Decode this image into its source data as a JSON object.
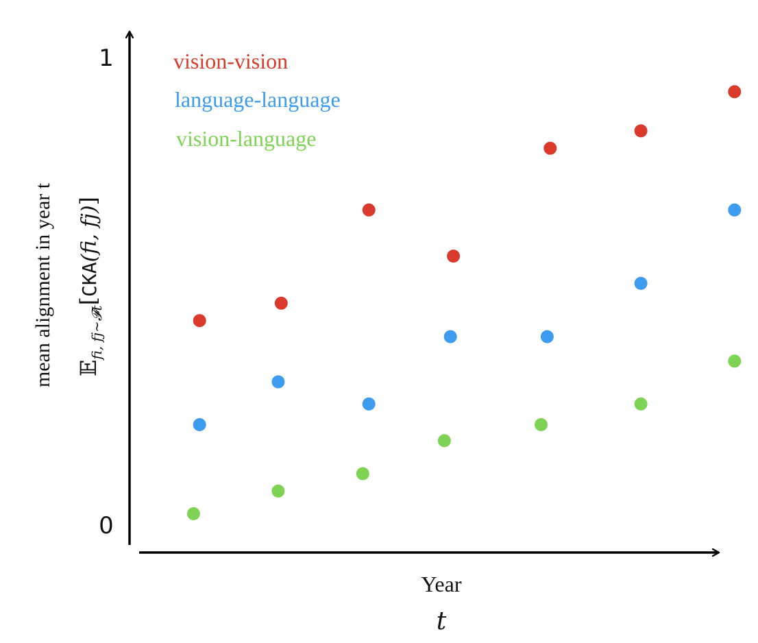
{
  "chart_data": {
    "type": "scatter",
    "title": "",
    "xlabel": "Year",
    "xlabel_symbol": "t",
    "ylabel": "mean alignment in year t",
    "ylabel_formula": {
      "E": "𝔼",
      "sub": "fi, fj∼𝓕t",
      "open": "[",
      "func": "CKA",
      "args": "(fi, fj)",
      "close": "]"
    },
    "y_ticks": [
      "0",
      "1"
    ],
    "ylim": [
      0,
      1
    ],
    "xlim": [
      0,
      10
    ],
    "legend_position": "top-left",
    "grid": false,
    "series": [
      {
        "name": "vision-vision",
        "color": "#d93a2b",
        "x": [
          1.0,
          2.35,
          3.8,
          5.2,
          6.8,
          8.3,
          9.85
        ],
        "y": [
          0.44,
          0.477,
          0.675,
          0.577,
          0.806,
          0.843,
          0.926
        ]
      },
      {
        "name": "language-language",
        "color": "#3d9bf0",
        "x": [
          1.0,
          2.3,
          3.8,
          5.15,
          6.75,
          8.3,
          9.85
        ],
        "y": [
          0.219,
          0.31,
          0.263,
          0.406,
          0.406,
          0.519,
          0.675
        ]
      },
      {
        "name": "vision-language",
        "color": "#7ed354",
        "x": [
          0.9,
          2.3,
          3.7,
          5.05,
          6.65,
          8.3,
          9.85
        ],
        "y": [
          0.03,
          0.078,
          0.115,
          0.185,
          0.219,
          0.263,
          0.354
        ]
      }
    ]
  }
}
